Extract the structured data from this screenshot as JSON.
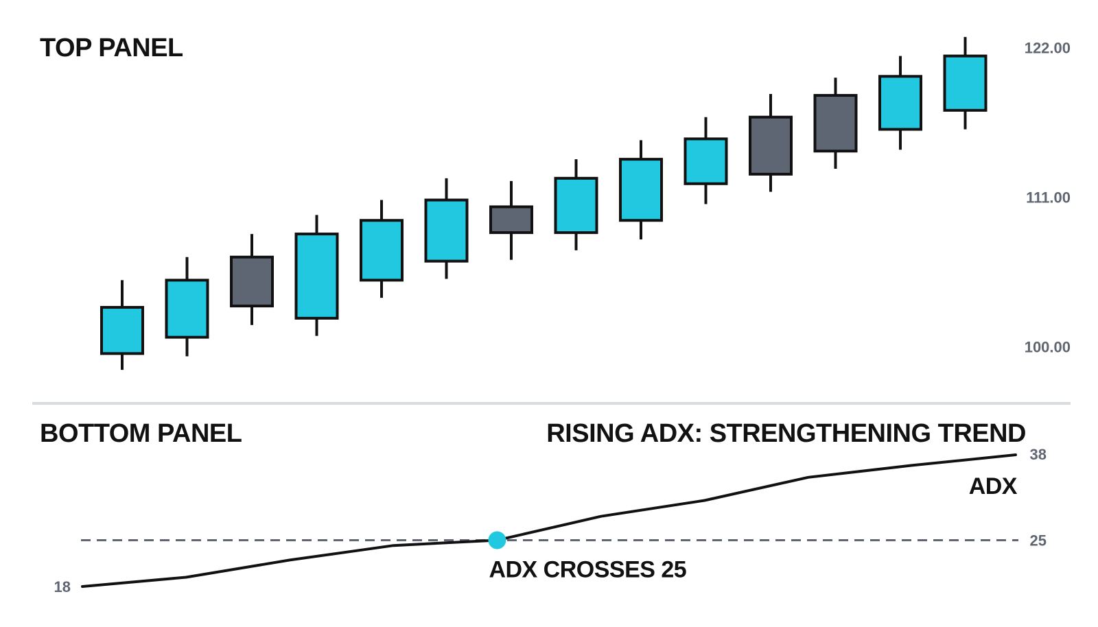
{
  "colors": {
    "bullish": "#22c8e0",
    "bearish": "#5e6573",
    "outline": "#111111",
    "divider": "#d9dcdf",
    "threshold": "#5f6672",
    "axis_text": "#5f6672",
    "marker": "#22c8e0"
  },
  "chart_data": [
    {
      "type": "candlestick",
      "title": "TOP PANEL",
      "ylim": [
        97.5,
        123.5
      ],
      "y_ticks": [
        {
          "value": 122,
          "label": "122.00"
        },
        {
          "value": 111,
          "label": "111.00"
        },
        {
          "value": 100,
          "label": "100.00"
        }
      ],
      "candles": [
        {
          "open": 99.5,
          "close": 102.9,
          "high": 104.9,
          "low": 98.3,
          "direction": "up"
        },
        {
          "open": 100.7,
          "close": 104.9,
          "high": 106.6,
          "low": 99.3,
          "direction": "up"
        },
        {
          "open": 106.6,
          "close": 103.0,
          "high": 108.3,
          "low": 101.6,
          "direction": "down"
        },
        {
          "open": 102.1,
          "close": 108.3,
          "high": 109.7,
          "low": 100.8,
          "direction": "up"
        },
        {
          "open": 104.9,
          "close": 109.3,
          "high": 110.8,
          "low": 103.6,
          "direction": "up"
        },
        {
          "open": 106.3,
          "close": 110.8,
          "high": 112.4,
          "low": 105.0,
          "direction": "up"
        },
        {
          "open": 110.3,
          "close": 108.4,
          "high": 112.2,
          "low": 106.4,
          "direction": "down"
        },
        {
          "open": 108.4,
          "close": 112.4,
          "high": 113.8,
          "low": 107.1,
          "direction": "up"
        },
        {
          "open": 109.3,
          "close": 113.8,
          "high": 115.2,
          "low": 107.9,
          "direction": "up"
        },
        {
          "open": 112.0,
          "close": 115.3,
          "high": 116.9,
          "low": 110.5,
          "direction": "up"
        },
        {
          "open": 116.9,
          "close": 112.7,
          "high": 118.6,
          "low": 111.4,
          "direction": "down"
        },
        {
          "open": 118.5,
          "close": 114.4,
          "high": 119.8,
          "low": 113.1,
          "direction": "down"
        },
        {
          "open": 116.0,
          "close": 119.9,
          "high": 121.4,
          "low": 114.5,
          "direction": "up"
        },
        {
          "open": 117.4,
          "close": 121.4,
          "high": 122.8,
          "low": 116.0,
          "direction": "up"
        }
      ]
    },
    {
      "type": "line",
      "title": "BOTTOM PANEL",
      "subtitle": "RISING ADX: STRENGTHENING TREND",
      "ylim": [
        18,
        38
      ],
      "y_ticks": [
        {
          "value": 38,
          "label": "38"
        },
        {
          "value": 25,
          "label": "25"
        },
        {
          "value": 18,
          "label": "18"
        }
      ],
      "threshold": {
        "value": 25,
        "style": "dashed"
      },
      "series": [
        {
          "name": "ADX",
          "values": [
            18.0,
            19.4,
            22.0,
            24.2,
            25.0,
            28.6,
            31.0,
            34.5,
            36.3,
            37.9
          ]
        }
      ],
      "marker": {
        "index": 4,
        "value": 25,
        "label": "ADX CROSSES 25"
      }
    }
  ]
}
